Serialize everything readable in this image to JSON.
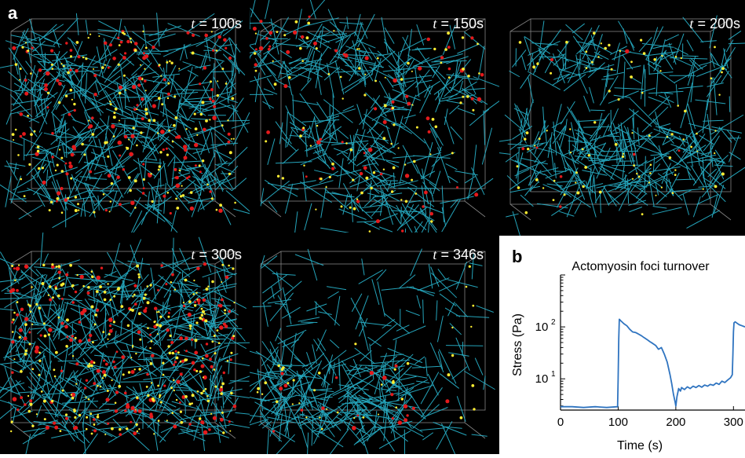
{
  "panel_a": {
    "letter": "a",
    "snapshots": [
      {
        "t_symbol": "t",
        "t_value": "= 100s",
        "state": "dispersed"
      },
      {
        "t_symbol": "t",
        "t_value": "= 150s",
        "state": "clustering"
      },
      {
        "t_symbol": "t",
        "t_value": "= 200s",
        "state": "layered"
      },
      {
        "t_symbol": "t",
        "t_value": "= 300s",
        "state": "dense-with-foci"
      },
      {
        "t_symbol": "t",
        "t_value": "= 346s",
        "state": "sparse"
      }
    ],
    "colors": {
      "background": "#000000",
      "filament": "#29b6cf",
      "myosin": "#e41a1c",
      "crosslinker": "#ffee33",
      "box": "#bbbbbb"
    }
  },
  "panel_b": {
    "letter": "b",
    "chart_data": {
      "type": "line",
      "title": "Actomyosin foci turnover",
      "xlabel": "Time (s)",
      "ylabel": "Stress (Pa)",
      "xlim": [
        0,
        320
      ],
      "ylim_log": [
        2.5,
        1000
      ],
      "xticks": [
        "0",
        "100",
        "200",
        "300"
      ],
      "yticks": [
        "10",
        "10"
      ],
      "ytick_exponents": [
        "1",
        "2"
      ],
      "yscale": "log",
      "color": "#2f74c0",
      "series": [
        {
          "x": [
            0,
            20,
            40,
            60,
            80,
            99,
            100,
            101,
            102,
            105,
            110,
            115,
            120,
            125,
            130,
            135,
            140,
            145,
            150,
            155,
            160,
            165,
            170,
            175,
            180,
            185,
            190,
            193,
            196,
            199,
            200,
            202,
            205,
            208,
            210,
            215,
            220,
            225,
            230,
            235,
            240,
            245,
            250,
            255,
            260,
            265,
            270,
            275,
            280,
            285,
            290,
            295,
            298,
            299,
            300,
            301,
            303,
            306,
            310,
            315,
            320
          ],
          "y": [
            2.9,
            2.9,
            2.8,
            2.9,
            2.8,
            2.9,
            10,
            60,
            140,
            130,
            115,
            105,
            90,
            80,
            78,
            73,
            68,
            62,
            57,
            52,
            48,
            44,
            37,
            40,
            30,
            21,
            12,
            8,
            5,
            3.5,
            3.0,
            4.5,
            6.5,
            5.8,
            6.8,
            6.2,
            7.0,
            6.5,
            7.2,
            6.8,
            7.4,
            6.9,
            7.6,
            7.2,
            7.8,
            7.5,
            8.3,
            7.8,
            9.0,
            8.5,
            9.5,
            10.5,
            12,
            30,
            80,
            120,
            125,
            118,
            110,
            105,
            100
          ]
        }
      ]
    }
  }
}
